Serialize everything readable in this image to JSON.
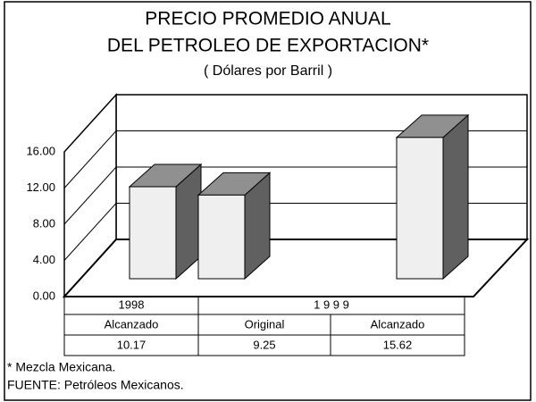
{
  "chart_data": {
    "type": "bar3d",
    "title": [
      "PRECIO PROMEDIO ANUAL",
      "DEL PETROLEO DE EXPORTACION*"
    ],
    "subtitle": "( Dólares por Barril )",
    "year_labels": [
      "1998",
      "1 9 9 9"
    ],
    "categories": [
      "Alcanzado",
      "Original",
      "Alcanzado"
    ],
    "values": [
      10.17,
      9.25,
      15.62
    ],
    "ylim": [
      0,
      16
    ],
    "yticks": [
      {
        "value": 0,
        "label": "0.00"
      },
      {
        "value": 4,
        "label": "4.00"
      },
      {
        "value": 8,
        "label": "8.00"
      },
      {
        "value": 12,
        "label": "12.00"
      },
      {
        "value": 16,
        "label": "16.00"
      }
    ],
    "grid": true,
    "color": "#efefef",
    "notes": [
      "* Mezcla Mexicana.",
      "FUENTE: Petróleos Mexicanos."
    ]
  }
}
